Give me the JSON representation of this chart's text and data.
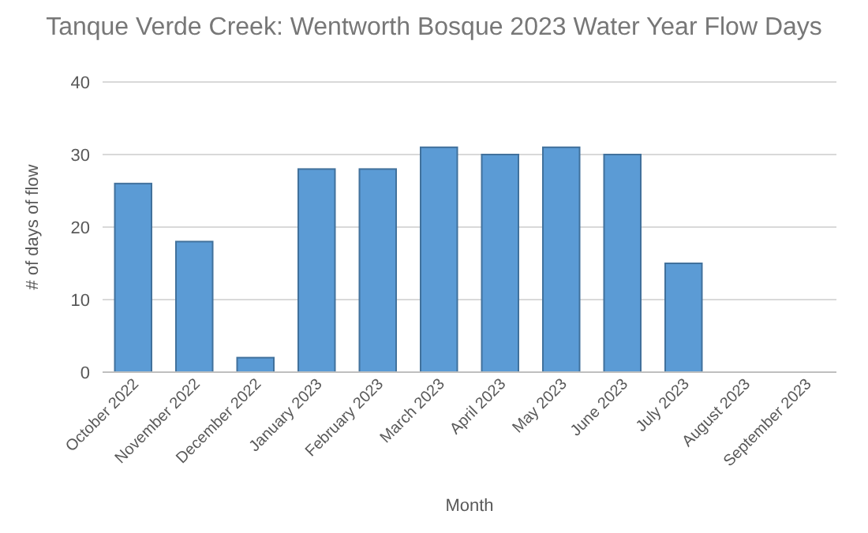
{
  "chart_data": {
    "type": "bar",
    "title": "Tanque Verde Creek: Wentworth Bosque 2023 Water Year Flow Days",
    "xlabel": "Month",
    "ylabel": "# of days of flow",
    "categories": [
      "October 2022",
      "November 2022",
      "December 2022",
      "January 2023",
      "February 2023",
      "March 2023",
      "April 2023",
      "May 2023",
      "June 2023",
      "July 2023",
      "August 2023",
      "September 2023"
    ],
    "values": [
      26,
      18,
      2,
      28,
      28,
      31,
      30,
      31,
      30,
      15,
      0,
      0
    ],
    "color": "#5b9bd5",
    "ylim": [
      0,
      40
    ],
    "yticks": [
      0,
      10,
      20,
      30,
      40
    ],
    "grid": "y"
  }
}
